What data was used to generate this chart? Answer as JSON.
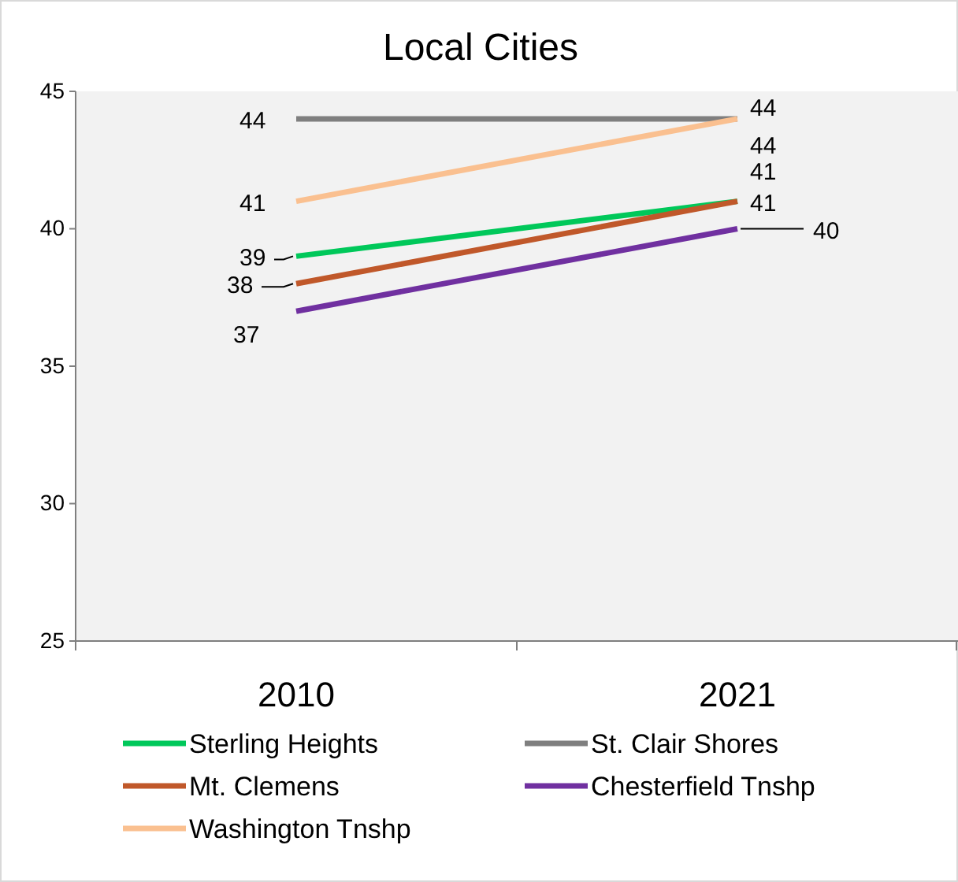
{
  "chart_data": {
    "type": "line",
    "title": "Local Cities",
    "categories": [
      "2010",
      "2021"
    ],
    "series": [
      {
        "name": "Sterling Heights",
        "color": "#00c85a",
        "values": [
          39,
          41
        ]
      },
      {
        "name": "St. Clair Shores",
        "color": "#7f7f7f",
        "values": [
          44,
          44
        ]
      },
      {
        "name": "Mt. Clemens",
        "color": "#c0582a",
        "values": [
          38,
          41
        ]
      },
      {
        "name": "Chesterfield Tnshp",
        "color": "#7030a0",
        "values": [
          37,
          40
        ]
      },
      {
        "name": "Washington Tnshp",
        "color": "#fac090",
        "values": [
          41,
          44
        ]
      }
    ],
    "ylim": [
      25,
      45
    ],
    "yticks": [
      25,
      30,
      35,
      40,
      45
    ],
    "grid": false,
    "legend": "bottom",
    "data_labels": true,
    "marker": "none",
    "line_style": "solid"
  }
}
